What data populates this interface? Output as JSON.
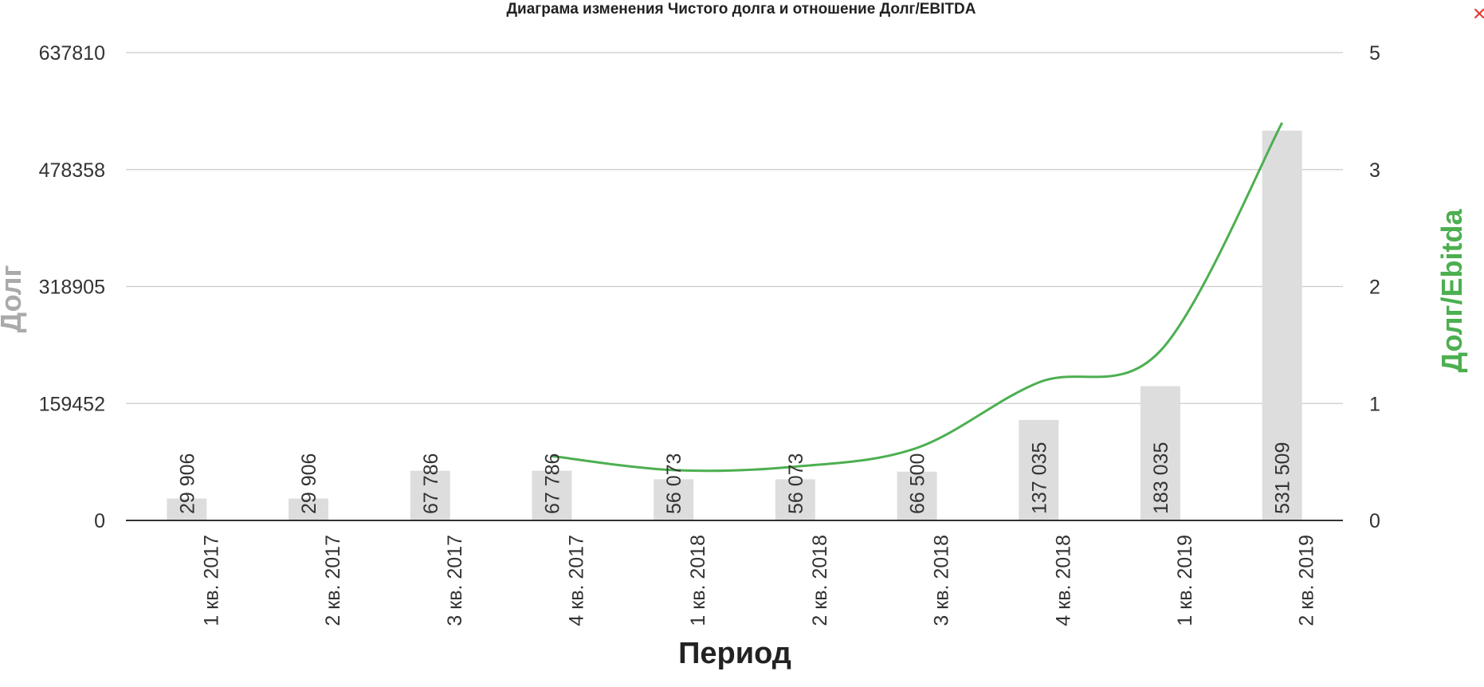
{
  "close_label": "✕",
  "chart_data": {
    "type": "bar",
    "title": "Диаграма изменения Чистого долга и отношение Долг/EBITDA",
    "xlabel": "Период",
    "ylabel": "Долг",
    "y2label": "Долг/Ebitda",
    "categories": [
      "1 кв. 2017",
      "2 кв. 2017",
      "3 кв. 2017",
      "4 кв. 2017",
      "1 кв. 2018",
      "2 кв. 2018",
      "3 кв. 2018",
      "4 кв. 2018",
      "1 кв. 2019",
      "2 кв. 2019"
    ],
    "ylim": [
      0,
      637810
    ],
    "y_ticks": [
      "0",
      "159452",
      "318905",
      "478358",
      "637810"
    ],
    "y2lim": [
      0,
      4
    ],
    "y2_ticks": [
      "0",
      "1",
      "2",
      "3",
      "5"
    ],
    "grid": true,
    "series": [
      {
        "type": "bar",
        "values": [
          29906,
          29906,
          67786,
          67786,
          56073,
          56073,
          66500,
          137035,
          183035,
          531509
        ],
        "labels": [
          "29 906",
          "29 906",
          "67 786",
          "67 786",
          "56 073",
          "56 073",
          "66 500",
          "137 035",
          "183 035",
          "531 509"
        ]
      },
      {
        "type": "line",
        "axis": "right",
        "values": [
          null,
          null,
          null,
          0.55,
          0.43,
          0.46,
          0.62,
          1.18,
          1.45,
          3.4
        ]
      }
    ],
    "colors": {
      "bar": "#dddddd",
      "line": "#4caf50",
      "grid": "#cccccc",
      "axis": "#333333",
      "left_label": "#aaaaaa",
      "right_label": "#4caf50",
      "text": "#333333"
    }
  }
}
